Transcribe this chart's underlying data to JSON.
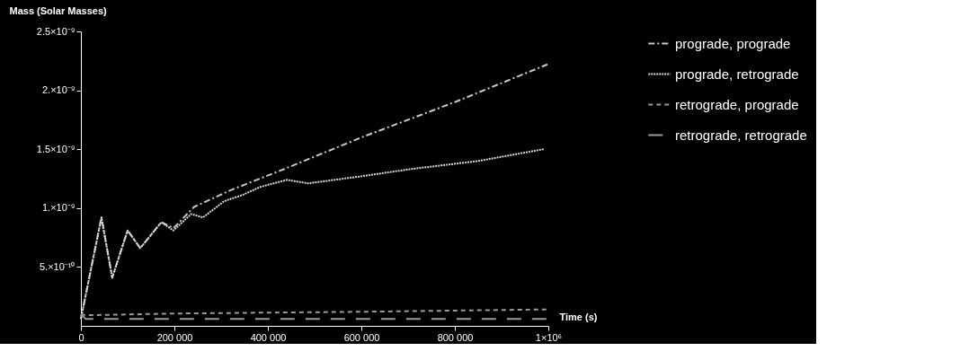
{
  "chart_data": {
    "type": "line",
    "xlabel": "Time (s)",
    "ylabel": "Mass (Solar Masses)",
    "xlim": [
      0,
      1000000
    ],
    "ylim": [
      0,
      2.5e-09
    ],
    "xticks": [
      0,
      {
        "value": 200000,
        "label": "200 000"
      },
      {
        "value": 400000,
        "label": "400 000"
      },
      {
        "value": 600000,
        "label": "600 000"
      },
      {
        "value": 800000,
        "label": "800 000"
      },
      {
        "value": 1000000,
        "label": "1×10⁶"
      }
    ],
    "yticks": [
      {
        "value": 5e-10,
        "label": "5.×10⁻¹⁰"
      },
      {
        "value": 1e-09,
        "label": "1.×10⁻⁹"
      },
      {
        "value": 1.5e-09,
        "label": "1.5×10⁻⁹"
      },
      {
        "value": 2e-09,
        "label": "2.×10⁻⁹"
      },
      {
        "value": 2.5e-09,
        "label": "2.5×10⁻⁹"
      }
    ],
    "legend": "right",
    "grid": false,
    "marker": "none",
    "series": [
      {
        "name": "prograde, prograde",
        "color": "#c8c8c8",
        "line_style": "dashdot",
        "x": [
          0,
          44000,
          67000,
          100000,
          127000,
          172000,
          198000,
          242000,
          319000,
          434000,
          600000,
          800000,
          998000
        ],
        "values": [
          6e-11,
          9.2e-10,
          4.1e-10,
          8.1e-10,
          6.6e-10,
          8.8e-10,
          8.3e-10,
          1.01e-09,
          1.15e-09,
          1.33e-09,
          1.6e-09,
          1.9e-09,
          2.22e-09
        ]
      },
      {
        "name": "prograde, retrograde",
        "color": "#d8d8d8",
        "line_style": "dotted",
        "x": [
          0,
          44000,
          67000,
          100000,
          127000,
          172000,
          198000,
          236000,
          261000,
          307000,
          345000,
          384000,
          441000,
          486000,
          600000,
          703000,
          850000,
          990000
        ],
        "values": [
          6e-11,
          9.2e-10,
          4.1e-10,
          8.1e-10,
          6.6e-10,
          8.8e-10,
          8.1e-10,
          9.5e-10,
          9.2e-10,
          1.06e-09,
          1.11e-09,
          1.18e-09,
          1.24e-09,
          1.21e-09,
          1.27e-09,
          1.33e-09,
          1.4e-09,
          1.5e-09
        ]
      },
      {
        "name": "retrograde, prograde",
        "color": "#9a9a9a",
        "line_style": "dashed",
        "x": [
          0,
          10000,
          200000,
          600000,
          998000
        ],
        "values": [
          1e-10,
          9e-11,
          1.05e-10,
          1.2e-10,
          1.4e-10
        ]
      },
      {
        "name": "retrograde, retrograde",
        "color": "#9a9a9a",
        "line_style": "longdash",
        "x": [
          0,
          10000,
          500000,
          998000
        ],
        "values": [
          1e-10,
          6e-11,
          6e-11,
          6e-11
        ]
      }
    ]
  }
}
